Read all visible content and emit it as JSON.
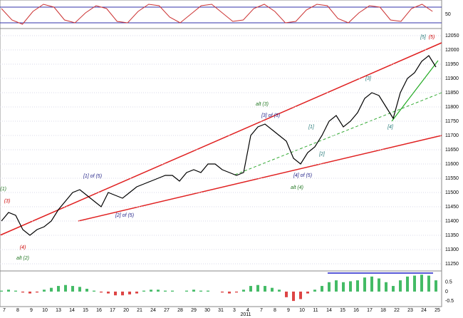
{
  "chart_data": [
    {
      "type": "line",
      "series": [
        {
          "color": "#000000",
          "values": [
            11400,
            11430,
            11420,
            11370,
            11350,
            11370,
            11380,
            11400,
            11440,
            11470,
            11500,
            11510,
            11490,
            11470,
            11450,
            11500,
            11490,
            11480,
            11500,
            11520,
            11530,
            11540,
            11550,
            11560,
            11560,
            11540,
            11570,
            11580,
            11570,
            11600,
            11600,
            11580,
            11570,
            11560,
            11570,
            11700,
            11730,
            11740,
            11720,
            11700,
            11680,
            11620,
            11600,
            11640,
            11660,
            11700,
            11750,
            11770,
            11730,
            11750,
            11780,
            11830,
            11850,
            11840,
            11800,
            11760,
            11850,
            11900,
            11920,
            11960,
            11980,
            11940
          ]
        }
      ],
      "ylim": [
        11225,
        12075
      ],
      "yticks": [
        {
          "value": 11250,
          "label": "11250"
        },
        11300,
        11350,
        11400,
        11450,
        11500,
        11550,
        11600,
        11650,
        11700,
        11750,
        11800,
        11850,
        11900,
        11950,
        12000,
        12050
      ],
      "grid": true,
      "xticklabels": [
        "7",
        "8",
        "9",
        "10",
        "13",
        "14",
        "15",
        "16",
        "17",
        "20",
        "21",
        "24",
        "27",
        "28",
        "29",
        "30",
        "31",
        "3",
        "4",
        "7",
        "8",
        "9",
        "10",
        "11",
        "14",
        "15",
        "16",
        "17",
        "18",
        "22",
        "23",
        "24",
        "25"
      ],
      "year": "2011",
      "annotations": [
        "alt (1)",
        "(3)",
        "(4)",
        "alt (2)",
        "[1] of (5)",
        "[2] of (5)",
        "alt (3)",
        "[3] of (5)",
        "[4] of (5)",
        "alt (4)",
        "[1]",
        "[2]",
        "[3]",
        "[4]",
        "[5]",
        "(5)"
      ]
    },
    {
      "type": "line",
      "series": [
        {
          "color": "#cc3333",
          "values": [
            70,
            30,
            15,
            60,
            85,
            75,
            30,
            20,
            55,
            80,
            70,
            25,
            20,
            60,
            85,
            80,
            40,
            20,
            50,
            80,
            85,
            55,
            25,
            30,
            70,
            85,
            60,
            20,
            25,
            65,
            85,
            80,
            35,
            20,
            55,
            80,
            75,
            30,
            25,
            70,
            85,
            60
          ]
        }
      ],
      "ylim": [
        0,
        100
      ],
      "yticks": [
        50
      ]
    },
    {
      "type": "bar",
      "values": [
        0.05,
        0.1,
        0.05,
        -0.05,
        -0.1,
        -0.05,
        0.1,
        0.2,
        0.3,
        0.35,
        0.3,
        0.25,
        0.15,
        0.05,
        -0.05,
        -0.1,
        -0.2,
        -0.2,
        -0.15,
        -0.1,
        0.05,
        0.1,
        0.1,
        0.05,
        0.05,
        0,
        0.05,
        0.1,
        0.05,
        0.05,
        0,
        -0.05,
        -0.1,
        -0.05,
        0.1,
        0.3,
        0.35,
        0.3,
        0.2,
        0.1,
        -0.3,
        -0.5,
        -0.4,
        -0.1,
        0.1,
        0.3,
        0.5,
        0.6,
        0.5,
        0.55,
        0.6,
        0.75,
        0.8,
        0.7,
        0.5,
        0.3,
        0.6,
        0.8,
        0.85,
        0.9,
        0.85,
        0.6
      ],
      "ylim": [
        -0.8,
        1.1
      ],
      "yticks": [
        0.5,
        0,
        -0.5
      ]
    }
  ]
}
